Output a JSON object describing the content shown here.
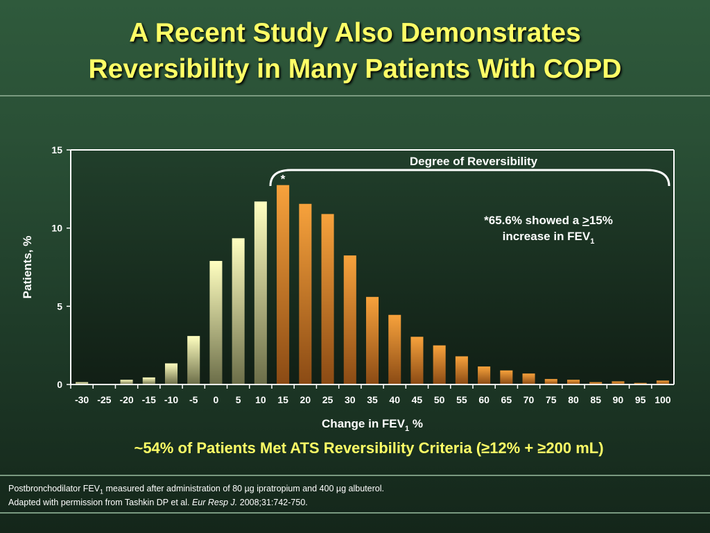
{
  "title_line1": "A Recent Study Also Demonstrates",
  "title_line2": "Reversibility in Many Patients With COPD",
  "chart_data": {
    "type": "bar",
    "categories": [
      "-30",
      "-25",
      "-20",
      "-15",
      "-10",
      "-5",
      "0",
      "5",
      "10",
      "15",
      "20",
      "25",
      "30",
      "35",
      "40",
      "45",
      "50",
      "55",
      "60",
      "65",
      "70",
      "75",
      "80",
      "85",
      "90",
      "95",
      "100"
    ],
    "values": [
      0.15,
      0,
      0.3,
      0.45,
      1.35,
      3.1,
      7.9,
      9.35,
      11.7,
      12.75,
      11.55,
      10.9,
      8.25,
      5.6,
      4.45,
      3.05,
      2.5,
      1.8,
      1.15,
      0.9,
      0.7,
      0.35,
      0.3,
      0.15,
      0.2,
      0.1,
      0.25
    ],
    "ylabel": "Patients, %",
    "xlabel": "Change in FEV",
    "xlabel_sub": "1",
    "xlabel_tail": " %",
    "ylim": [
      0,
      15
    ],
    "yticks": [
      "0",
      "5",
      "10",
      "15"
    ],
    "grid": false,
    "highlight_from_category": "15",
    "colors": {
      "low_top": "#ffffc0",
      "low_bottom": "#6b6d48",
      "high_top": "#f7a23c",
      "high_bottom": "#8a4a14"
    },
    "annotations": {
      "bracket_label": "Degree of Reversibility",
      "star": "*",
      "note_line1": "*65.6% showed a ",
      "note_ge": ">",
      "note_pct": "15%",
      "note_line2": "increase in FEV",
      "note_sub": "1"
    }
  },
  "criteria_text": "~54% of Patients Met ATS Reversibility Criteria (≥12% + ≥200 mL)",
  "footnote1_pre": "Postbronchodilator FEV",
  "footnote1_sub": "1",
  "footnote1_post": " measured after administration of 80 µg ipratropium and 400 µg albuterol.",
  "footnote2_pre": "Adapted with permission from Tashkin DP et al. ",
  "footnote2_journal": "Eur Resp J.",
  "footnote2_post": " 2008;31:742-750."
}
